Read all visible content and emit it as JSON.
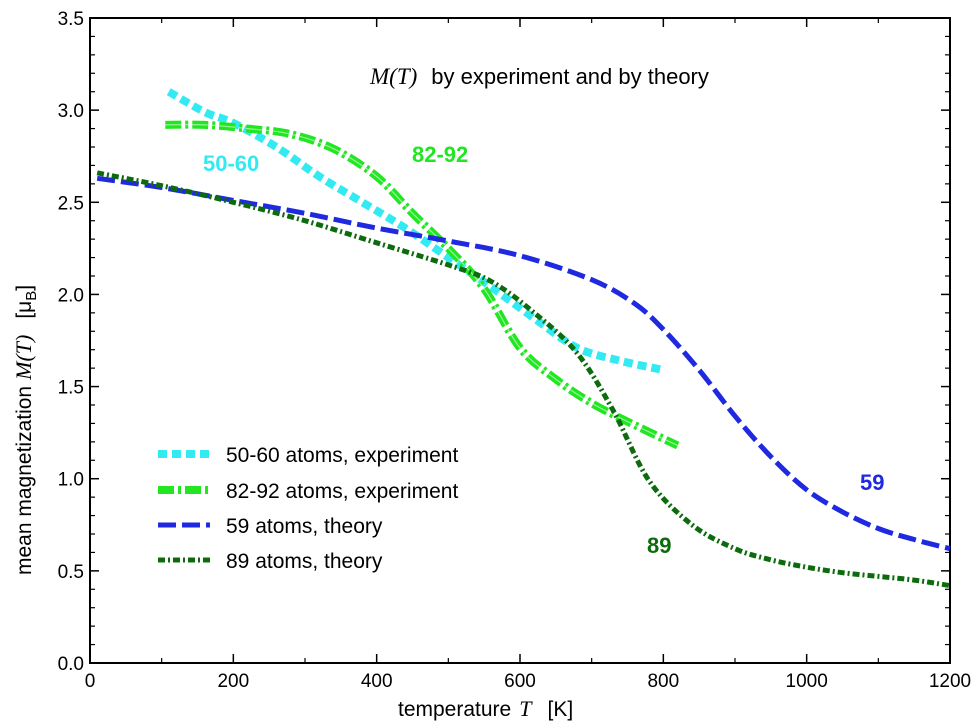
{
  "chart_data": {
    "type": "line",
    "title": "M(T)",
    "title_rest": "by experiment and by theory",
    "xlabel": "temperature",
    "xlabel_var": "T",
    "xlabel_unit": "[K]",
    "ylabel": "mean magnetization",
    "ylabel_var": "M(T)",
    "ylabel_unit": "[μ",
    "ylabel_unit_sub": "B",
    "ylabel_unit_close": "]",
    "xlim": [
      0,
      1200
    ],
    "ylim": [
      0,
      3.5
    ],
    "xticks": [
      "0",
      "200",
      "400",
      "600",
      "800",
      "1000",
      "1200"
    ],
    "yticks": [
      "0.0",
      "0.5",
      "1.0",
      "1.5",
      "2.0",
      "2.5",
      "3.0",
      "3.5"
    ],
    "legend_position": "bottom-left",
    "series": [
      {
        "name": "50-60 atoms, experiment",
        "color": "#33eaf2",
        "style": "dotted-thick",
        "annotation": "50-60",
        "x": [
          110,
          160,
          200,
          260,
          320,
          380,
          440,
          500,
          560,
          620,
          680,
          740,
          800
        ],
        "y": [
          3.1,
          2.99,
          2.93,
          2.8,
          2.64,
          2.5,
          2.36,
          2.2,
          2.04,
          1.87,
          1.71,
          1.64,
          1.59
        ]
      },
      {
        "name": "82-92 atoms, experiment",
        "color": "#22e622",
        "style": "dash-dot-thick",
        "annotation": "82-92",
        "x": [
          105,
          160,
          220,
          280,
          340,
          400,
          450,
          500,
          550,
          600,
          650,
          700,
          750,
          820
        ],
        "y": [
          2.92,
          2.92,
          2.9,
          2.87,
          2.79,
          2.64,
          2.44,
          2.25,
          2.03,
          1.71,
          1.54,
          1.41,
          1.31,
          1.18
        ]
      },
      {
        "name": "59 atoms, theory",
        "color": "#1f29e0",
        "style": "long-dash",
        "annotation": "59",
        "x": [
          10,
          100,
          200,
          300,
          400,
          500,
          600,
          700,
          760,
          800,
          850,
          900,
          950,
          1000,
          1050,
          1100,
          1150,
          1200
        ],
        "y": [
          2.63,
          2.58,
          2.51,
          2.44,
          2.36,
          2.29,
          2.21,
          2.08,
          1.95,
          1.81,
          1.59,
          1.34,
          1.12,
          0.94,
          0.82,
          0.73,
          0.67,
          0.62
        ]
      },
      {
        "name": "89 atoms, theory",
        "color": "#0c6b0c",
        "style": "dash-dot",
        "annotation": "89",
        "x": [
          10,
          100,
          200,
          300,
          400,
          500,
          560,
          620,
          680,
          730,
          780,
          840,
          900,
          950,
          1000,
          1050,
          1100,
          1150,
          1200
        ],
        "y": [
          2.66,
          2.59,
          2.5,
          2.4,
          2.28,
          2.16,
          2.07,
          1.9,
          1.68,
          1.37,
          0.99,
          0.75,
          0.62,
          0.56,
          0.52,
          0.49,
          0.47,
          0.45,
          0.42
        ]
      }
    ]
  }
}
